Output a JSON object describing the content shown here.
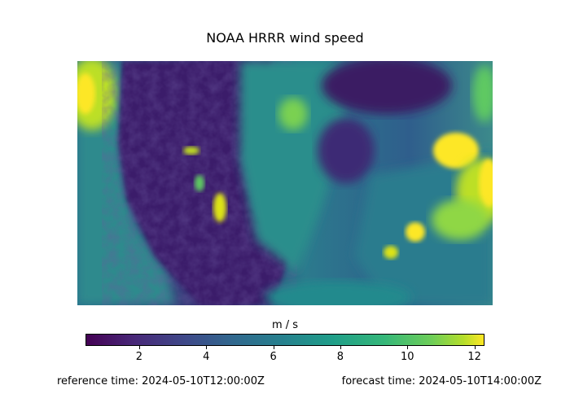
{
  "chart_data": {
    "type": "heatmap",
    "title": "NOAA HRRR wind speed",
    "colormap": "viridis",
    "colorbar": {
      "label": "m / s",
      "vmin": 0.4,
      "vmax": 12.3,
      "ticks": [
        2,
        4,
        6,
        8,
        10,
        12
      ]
    },
    "footer": {
      "reference_time": "reference time: 2024-05-10T12:00:00Z",
      "forecast_time": "forecast time: 2024-05-10T14:00:00Z"
    },
    "colors": {
      "low": "#440154",
      "mid": "#21918c",
      "high": "#fde725"
    }
  }
}
